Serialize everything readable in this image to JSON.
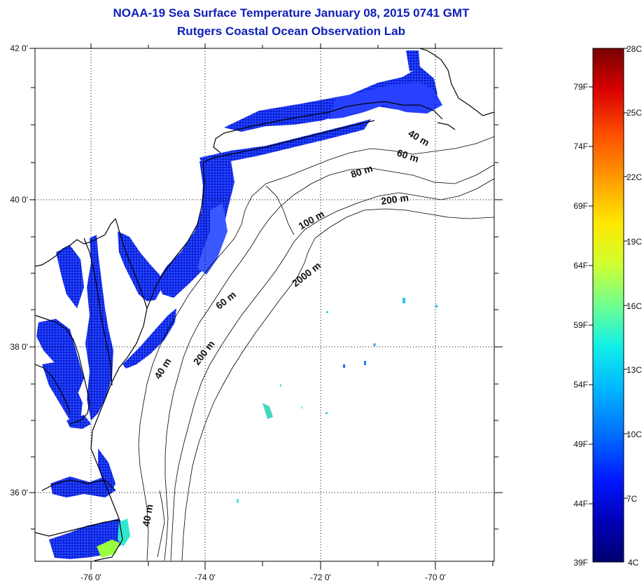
{
  "title": "NOAA-19 Sea Surface Temperature January 08, 2015 0741 GMT",
  "subtitle": "Rutgers Coastal Ocean Observation Lab",
  "map": {
    "lat_labels": [
      "42 0'",
      "40 0'",
      "38 0'",
      "36 0'"
    ],
    "lon_labels": [
      "-76 0'",
      "-74 0'",
      "-72 0'",
      "-70 0'"
    ],
    "isobath_labels": [
      "40 m",
      "60 m",
      "80 m",
      "200 m",
      "100 m",
      "2000 m",
      "60 m",
      "200 m",
      "40 m",
      "40 m"
    ]
  },
  "colorbar": {
    "fahrenheit_labels": [
      "79F",
      "74F",
      "69F",
      "64F",
      "59F",
      "54F",
      "49F",
      "44F",
      "39F"
    ],
    "celsius_labels": [
      "28C",
      "25C",
      "22C",
      "19C",
      "16C",
      "13C",
      "10C",
      "7C",
      "4C"
    ],
    "colors": [
      "#7a0000",
      "#b00000",
      "#e01000",
      "#ff4000",
      "#ff8000",
      "#ffb800",
      "#ffe800",
      "#d8ff30",
      "#80ff80",
      "#30ffc8",
      "#00d8ff",
      "#0090ff",
      "#0050ff",
      "#0010e0",
      "#0000a8",
      "#000070"
    ]
  }
}
